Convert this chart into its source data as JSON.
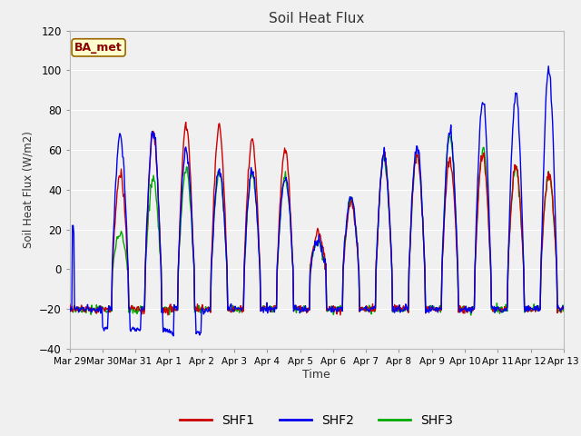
{
  "title": "Soil Heat Flux",
  "ylabel": "Soil Heat Flux (W/m2)",
  "xlabel": "Time",
  "ylim": [
    -40,
    120
  ],
  "series_colors": {
    "SHF1": "#cc0000",
    "SHF2": "#0000ee",
    "SHF3": "#00aa00"
  },
  "annotation_text": "BA_met",
  "annotation_facecolor": "#ffffcc",
  "annotation_edgecolor": "#996600",
  "xtick_labels": [
    "Mar 29",
    "Mar 30",
    "Mar 31",
    "Apr 1",
    "Apr 2",
    "Apr 3",
    "Apr 4",
    "Apr 5",
    "Apr 6",
    "Apr 7",
    "Apr 8",
    "Apr 9",
    "Apr 10",
    "Apr 11",
    "Apr 12",
    "Apr 13"
  ],
  "ytick_values": [
    -40,
    -20,
    0,
    20,
    40,
    60,
    80,
    100,
    120
  ],
  "bg_color": "#f0f0f0",
  "fig_bg_color": "#f0f0f0"
}
